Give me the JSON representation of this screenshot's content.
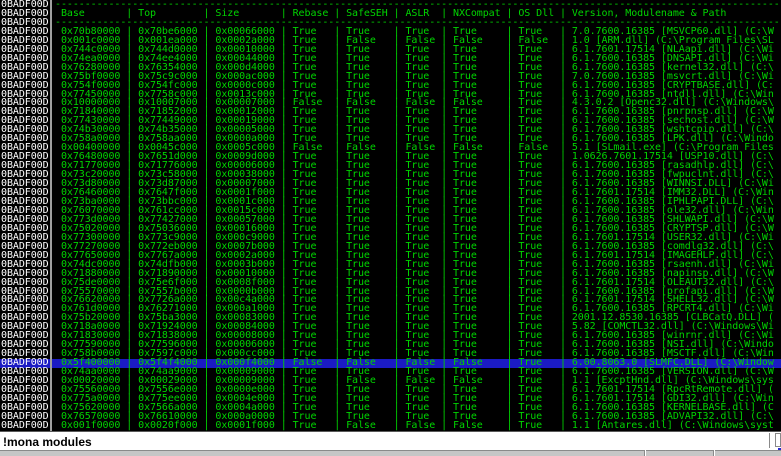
{
  "colors": {
    "text_green": "#00d400",
    "gutter_white": "#ffffff",
    "selection_blue": "#1b1bc4",
    "input_bg": "#ffffff",
    "status_gray": "#c6c6c6"
  },
  "log": {
    "gutter_label": "0BADF00D",
    "separator": "-----------------------------------------------------------------------------------------------------------------------------",
    "columns": [
      "Base",
      "Top",
      "Size",
      "Rebase",
      "SafeSEH",
      "ASLR",
      "NXCompat",
      "OS Dll",
      "Version, Modulename & Path"
    ],
    "selected_row_index": 37,
    "rows": [
      [
        "0x70b80000",
        "0x70be6000",
        "0x00066000",
        "True",
        "True",
        "True",
        "True",
        "True",
        "7.0.7600.16385 [MSVCP60.dll] (C:\\W"
      ],
      [
        "0x001c0000",
        "0x001ea000",
        "0x0002a000",
        "True",
        "False",
        "False",
        "False",
        "False",
        "1.0 [ARM.dll] (C:\\Program Files\\SL"
      ],
      [
        "0x744c0000",
        "0x744d0000",
        "0x00010000",
        "True",
        "True",
        "True",
        "True",
        "True",
        "6.1.7601.17514 [NLAapi.dll] (C:\\Wi"
      ],
      [
        "0x74ea0000",
        "0x74ee4000",
        "0x00044000",
        "True",
        "True",
        "True",
        "True",
        "True",
        "6.1.7600.16385 [DNSAPI.dll] (C:\\Wi"
      ],
      [
        "0x76280000",
        "0x76354000",
        "0x000d4000",
        "True",
        "True",
        "True",
        "True",
        "True",
        "6.1.7600.16385 [kernel32.dll] (C:\\"
      ],
      [
        "0x75bf0000",
        "0x75c9c000",
        "0x000ac000",
        "True",
        "True",
        "True",
        "True",
        "True",
        "7.0.7600.16385 [msvcrt.dll] (C:\\Wi"
      ],
      [
        "0x754f0000",
        "0x754fc000",
        "0x0000c000",
        "True",
        "True",
        "True",
        "True",
        "True",
        "6.1.7600.16385 [CRYPTBASE.dll] (C:"
      ],
      [
        "0x77450000",
        "0x7758c000",
        "0x0013c000",
        "True",
        "True",
        "True",
        "True",
        "True",
        "6.1.7600.16385 [ntdll.dll] (C:\\Win"
      ],
      [
        "0x10000000",
        "0x10007000",
        "0x00007000",
        "False",
        "False",
        "False",
        "False",
        "True",
        "4.3.0.2 [Openc32.dll] (C:\\Windows\\"
      ],
      [
        "0x71840000",
        "0x71852000",
        "0x00012000",
        "True",
        "True",
        "True",
        "True",
        "True",
        "6.1.7600.16385 [pnrpnsp.dll] (C:\\W"
      ],
      [
        "0x77430000",
        "0x77449000",
        "0x00019000",
        "True",
        "True",
        "True",
        "True",
        "True",
        "6.1.7600.16385 [sechost.dll] (C:\\W"
      ],
      [
        "0x74b30000",
        "0x74b35000",
        "0x00005000",
        "True",
        "True",
        "True",
        "True",
        "True",
        "6.1.7600.16385 [wshtcpip.dll] (C:\\"
      ],
      [
        "0x758a0000",
        "0x758aa000",
        "0x0000a000",
        "True",
        "True",
        "True",
        "True",
        "True",
        "6.1.7600.16385 [LPK.dll] (C:\\Windo"
      ],
      [
        "0x00400000",
        "0x0045c000",
        "0x0005c000",
        "False",
        "False",
        "False",
        "False",
        "False",
        "5.1 [SLmail.exe] (C:\\Program Files"
      ],
      [
        "0x76480000",
        "0x7651d000",
        "0x0009d000",
        "True",
        "True",
        "True",
        "True",
        "True",
        "1.0626.7601.17514 [USP10.dll] (C:\\"
      ],
      [
        "0x71770000",
        "0x71776000",
        "0x00006000",
        "True",
        "True",
        "True",
        "True",
        "True",
        "6.1.7600.16385 [rasadhlp.dll] (C:\\"
      ],
      [
        "0x73c20000",
        "0x73c58000",
        "0x00038000",
        "True",
        "True",
        "True",
        "True",
        "True",
        "6.1.7600.16385 [fwpuclnt.dll] (C:\\"
      ],
      [
        "0x73d80000",
        "0x73d87000",
        "0x00007000",
        "True",
        "True",
        "True",
        "True",
        "True",
        "6.1.7600.16385 [WINNSI.DLL] (C:\\Wi"
      ],
      [
        "0x76460000",
        "0x7647f000",
        "0x0001f000",
        "True",
        "True",
        "True",
        "True",
        "True",
        "6.1.7601.17514 [IMM32.DLL] (C:\\Win"
      ],
      [
        "0x73ba0000",
        "0x73bbc000",
        "0x0001c000",
        "True",
        "True",
        "True",
        "True",
        "True",
        "6.1.7600.16385 [IPHLPAPI.DLL] (C:\\"
      ],
      [
        "0x76070000",
        "0x761cc000",
        "0x0015c000",
        "True",
        "True",
        "True",
        "True",
        "True",
        "6.1.7600.16385 [ole32.dll] (C:\\Win"
      ],
      [
        "0x773d0000",
        "0x77427000",
        "0x00057000",
        "True",
        "True",
        "True",
        "True",
        "True",
        "6.1.7600.16385 [SHLWAPI.dll] (C:\\W"
      ],
      [
        "0x75020000",
        "0x75036000",
        "0x00016000",
        "True",
        "True",
        "True",
        "True",
        "True",
        "6.1.7600.16385 [CRYPTSP.dll] (C:\\W"
      ],
      [
        "0x77300000",
        "0x773c9000",
        "0x000c9000",
        "True",
        "True",
        "True",
        "True",
        "True",
        "6.1.7601.17514 [USER32.dll] (C:\\Wi"
      ],
      [
        "0x77270000",
        "0x772eb000",
        "0x0007b000",
        "True",
        "True",
        "True",
        "True",
        "True",
        "6.1.7600.16385 [comdlg32.dll] (C:\\"
      ],
      [
        "0x77650000",
        "0x7767a000",
        "0x0002a000",
        "True",
        "True",
        "True",
        "True",
        "True",
        "6.1.7601.17514 [IMAGEHLP.dll] (C:\\"
      ],
      [
        "0x74dc0000",
        "0x74dfb000",
        "0x0003b000",
        "True",
        "True",
        "True",
        "True",
        "True",
        "6.1.7600.16385 [rsaenh.dll] (C:\\Wi"
      ],
      [
        "0x71880000",
        "0x71890000",
        "0x00010000",
        "True",
        "True",
        "True",
        "True",
        "True",
        "6.1.7600.16385 [napinsp.dll] (C:\\W"
      ],
      [
        "0x75de0000",
        "0x75e6f000",
        "0x0008f000",
        "True",
        "True",
        "True",
        "True",
        "True",
        "6.1.7601.17514 [OLEAUT32.dll] (C:\\"
      ],
      [
        "0x75570000",
        "0x7557b000",
        "0x0000b000",
        "True",
        "True",
        "True",
        "True",
        "True",
        "6.1.7600.16385 [profapi.dll] (C:\\W"
      ],
      [
        "0x76620000",
        "0x7726a000",
        "0x00c4a000",
        "True",
        "True",
        "True",
        "True",
        "True",
        "6.1.7601.17514 [SHELL32.dll] (C:\\W"
      ],
      [
        "0x761d0000",
        "0x76271000",
        "0x000a1000",
        "True",
        "True",
        "True",
        "True",
        "True",
        "6.1.7600.16385 [RPCRT4.dll] (C:\\Wi"
      ],
      [
        "0x75b20000",
        "0x75ba3000",
        "0x00083000",
        "True",
        "True",
        "True",
        "True",
        "True",
        "2001.12.8530.16385 [CLBCatQ.DLL] ("
      ],
      [
        "0x718a0000",
        "0x71924000",
        "0x00084000",
        "True",
        "True",
        "True",
        "True",
        "True",
        "5.82 [COMCTL32.dll] (C:\\Windows\\Wi"
      ],
      [
        "0x71830000",
        "0x71838000",
        "0x00008000",
        "True",
        "True",
        "True",
        "True",
        "True",
        "6.1.7600.16385 [winrnr.dll] (C:\\Wi"
      ],
      [
        "0x77590000",
        "0x77596000",
        "0x00006000",
        "True",
        "True",
        "True",
        "True",
        "True",
        "6.1.7600.16385 [NSI.dll] (C:\\Windo"
      ],
      [
        "0x758b0000",
        "0x7597c000",
        "0x000cc000",
        "True",
        "True",
        "True",
        "True",
        "True",
        "6.1.7600.16385 [MSCTF.dll] (C:\\Win"
      ],
      [
        "0x5f400000",
        "0x5f4f4000",
        "0x000f4000",
        "False",
        "False",
        "False",
        "False",
        "True",
        "6.00.8063.0 [SLMFC.DLL] (C:\\Window"
      ],
      [
        "0x74aa0000",
        "0x74aa9000",
        "0x00009000",
        "True",
        "True",
        "True",
        "True",
        "True",
        "6.1.7600.16385 [VERSION.dll] (C:\\W"
      ],
      [
        "0x00020000",
        "0x00029000",
        "0x00009000",
        "True",
        "False",
        "False",
        "False",
        "True",
        "1.1 [ExcptHnd.dll] (C:\\Windows\\sys"
      ],
      [
        "0x75560000",
        "0x7556e000",
        "0x0000e000",
        "True",
        "True",
        "True",
        "True",
        "True",
        "6.1.7601.17514 [RpcRtRemote.dll] ("
      ],
      [
        "0x775a0000",
        "0x775ee000",
        "0x0004e000",
        "True",
        "True",
        "True",
        "True",
        "True",
        "6.1.7601.17514 [GDI32.dll] (C:\\Win"
      ],
      [
        "0x75620000",
        "0x7566a000",
        "0x0004a000",
        "True",
        "True",
        "True",
        "True",
        "True",
        "6.1.7600.16385 [KERNELBASE.dll] (C"
      ],
      [
        "0x76570000",
        "0x76610000",
        "0x000a0000",
        "True",
        "True",
        "True",
        "True",
        "True",
        "6.1.7600.16385 [ADVAPI32.dll] (C:\\"
      ],
      [
        "0x001f0000",
        "0x0020f000",
        "0x0001f000",
        "True",
        "False",
        "False",
        "False",
        "True",
        "1.1 [Antares.dll] (C:\\Windows\\syst"
      ]
    ]
  },
  "command": {
    "value": "!mona modules"
  }
}
